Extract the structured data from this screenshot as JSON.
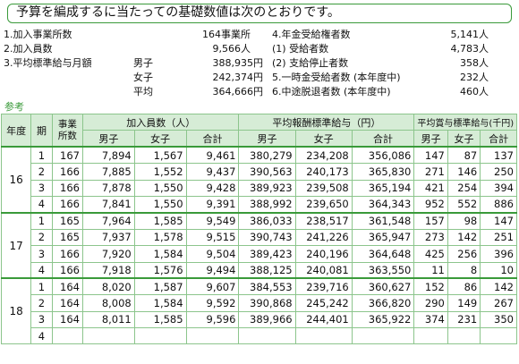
{
  "title": "予算を編成するに当たっての基礎数値は次のとおりです。",
  "left_info": [
    {
      "label": "1.加入事業所数",
      "value": "164事業所"
    },
    {
      "label": "2.加入員数",
      "value": "9,566人"
    }
  ],
  "salary": {
    "label": "3.平均標準給与月額",
    "rows": [
      {
        "sub": "男子",
        "value": "388,935円"
      },
      {
        "sub": "女子",
        "value": "242,374円"
      },
      {
        "sub": "平均",
        "value": "364,666円"
      }
    ]
  },
  "right_info": [
    {
      "label": "4.年金受給権者数",
      "value": "5,141人"
    },
    {
      "label": "(1) 受給者数",
      "value": "4,783人"
    },
    {
      "label": "(2) 支給停止者数",
      "value": "358人"
    },
    {
      "label": "5.一時金受給者数 (本年度中)",
      "value": "232人"
    },
    {
      "label": "6.中途脱退者数 (本年度中)",
      "value": "460人"
    }
  ],
  "reference_label": "参考",
  "table": {
    "headers": {
      "year": "年度",
      "period": "期",
      "offices": "事業所数",
      "members": "加入員数（人）",
      "salary": "平均報酬標準給与（円）",
      "bonus": "平均賞与標準給与(千円)",
      "male": "男子",
      "female": "女子",
      "total": "合計"
    },
    "groups": [
      {
        "year": "16",
        "rows": [
          [
            "1",
            "167",
            "7,894",
            "1,567",
            "9,461",
            "380,279",
            "234,208",
            "356,086",
            "147",
            "87",
            "137"
          ],
          [
            "2",
            "166",
            "7,885",
            "1,552",
            "9,437",
            "390,563",
            "240,173",
            "365,830",
            "271",
            "146",
            "250"
          ],
          [
            "3",
            "166",
            "7,878",
            "1,550",
            "9,428",
            "389,923",
            "239,508",
            "365,194",
            "421",
            "254",
            "394"
          ],
          [
            "4",
            "166",
            "7,841",
            "1,550",
            "9,391",
            "388,992",
            "239,650",
            "364,343",
            "952",
            "552",
            "886"
          ]
        ]
      },
      {
        "year": "17",
        "rows": [
          [
            "1",
            "165",
            "7,964",
            "1,585",
            "9,549",
            "386,033",
            "238,517",
            "361,548",
            "157",
            "98",
            "147"
          ],
          [
            "2",
            "165",
            "7,937",
            "1,578",
            "9,515",
            "390,743",
            "241,226",
            "365,947",
            "273",
            "142",
            "251"
          ],
          [
            "3",
            "166",
            "7,920",
            "1,584",
            "9,504",
            "389,423",
            "240,196",
            "364,648",
            "425",
            "256",
            "396"
          ],
          [
            "4",
            "166",
            "7,918",
            "1,576",
            "9,494",
            "388,125",
            "240,081",
            "363,550",
            "11",
            "8",
            "10"
          ]
        ]
      },
      {
        "year": "18",
        "rows": [
          [
            "1",
            "164",
            "8,020",
            "1,587",
            "9,607",
            "384,553",
            "239,716",
            "360,627",
            "152",
            "86",
            "142"
          ],
          [
            "2",
            "164",
            "8,008",
            "1,584",
            "9,592",
            "390,868",
            "245,242",
            "366,820",
            "290",
            "149",
            "267"
          ],
          [
            "3",
            "164",
            "8,011",
            "1,585",
            "9,596",
            "389,966",
            "244,401",
            "365,922",
            "374",
            "231",
            "350"
          ],
          [
            "4",
            "",
            "",
            "",
            "",
            "",
            "",
            "",
            "",
            "",
            ""
          ]
        ]
      }
    ]
  }
}
